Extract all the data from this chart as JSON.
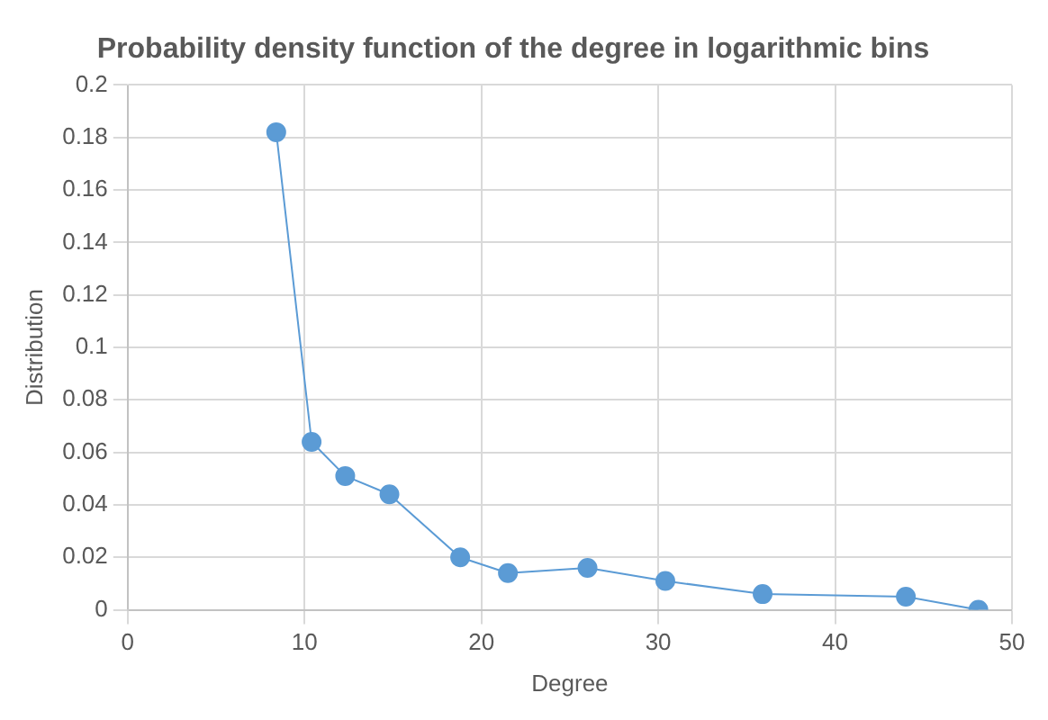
{
  "chart_data": {
    "type": "line",
    "title": "Probability density function of the degree in logarithmic bins",
    "xlabel": "Degree",
    "ylabel": "Distribution",
    "series": [
      {
        "color": "#5b9bd5",
        "x": [
          8.4,
          10.4,
          12.3,
          14.8,
          18.8,
          21.5,
          26.0,
          30.4,
          35.9,
          44.0,
          48.1
        ],
        "values": [
          0.182,
          0.064,
          0.051,
          0.044,
          0.02,
          0.014,
          0.016,
          0.011,
          0.006,
          0.005,
          0
        ]
      }
    ],
    "xlim": [
      0,
      50
    ],
    "xticks": [
      0,
      10,
      20,
      30,
      40,
      50
    ],
    "ylim": [
      0,
      0.2
    ],
    "yticks": [
      0,
      0.02,
      0.04,
      0.06,
      0.08,
      0.1,
      0.12,
      0.14,
      0.16,
      0.18,
      0.2
    ],
    "grid": true,
    "legend": false,
    "marker": "circle",
    "line_style": "solid"
  }
}
